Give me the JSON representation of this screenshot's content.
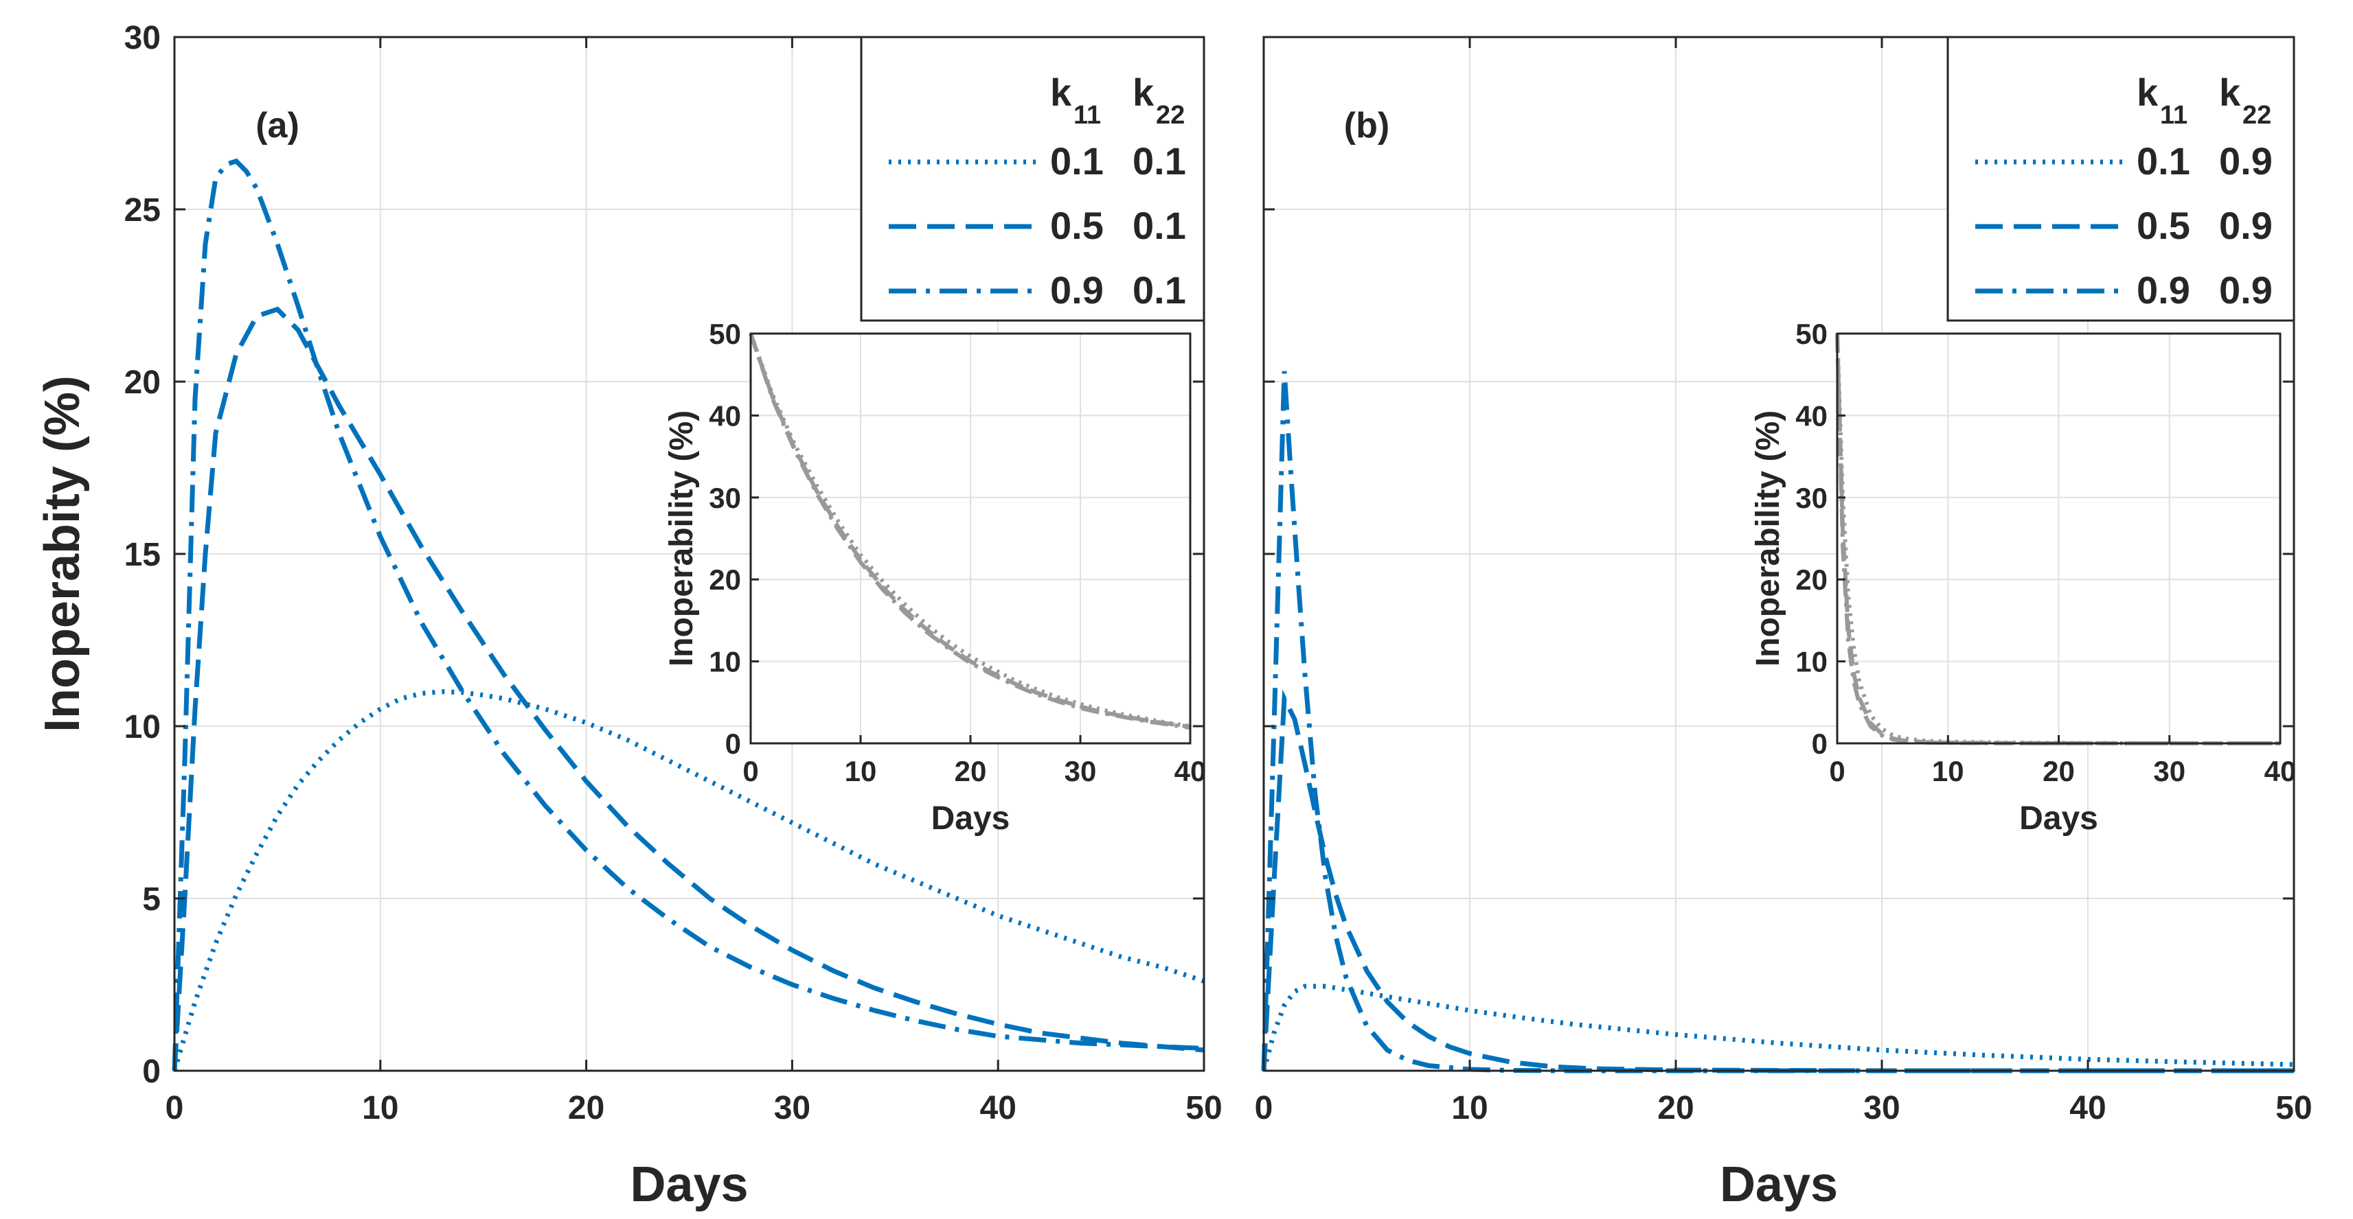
{
  "chart_data": [
    {
      "type": "line",
      "panel_label": "(a)",
      "xlabel": "Days",
      "ylabel": "Inoperabity (%)",
      "xlim": [
        0,
        50
      ],
      "ylim": [
        0,
        30
      ],
      "xticks": [
        "0",
        "10",
        "20",
        "30",
        "40",
        "50"
      ],
      "yticks": [
        "0",
        "5",
        "10",
        "15",
        "20",
        "25",
        "30"
      ],
      "grid": true,
      "legend": {
        "placement": "top-right",
        "header": {
          "k11": "k",
          "k11_sub": "11",
          "k22": "k",
          "k22_sub": "22"
        },
        "rows": [
          {
            "style": "dotted",
            "k11": "0.1",
            "k22": "0.1"
          },
          {
            "style": "dashed",
            "k11": "0.5",
            "k22": "0.1"
          },
          {
            "style": "dashdot",
            "k11": "0.9",
            "k22": "0.1"
          }
        ]
      },
      "color": "#0072BD",
      "series": [
        {
          "style": "dotted",
          "x": [
            0,
            1,
            2,
            3,
            4,
            5,
            6,
            7,
            8,
            9,
            10,
            11,
            12,
            13,
            14,
            15,
            16,
            18,
            20,
            22,
            24,
            26,
            28,
            30,
            32,
            34,
            36,
            38,
            40,
            42,
            44,
            46,
            48,
            50
          ],
          "values": [
            0,
            2.0,
            3.7,
            5.1,
            6.3,
            7.4,
            8.3,
            9.0,
            9.6,
            10.1,
            10.5,
            10.8,
            10.95,
            11.0,
            10.98,
            10.9,
            10.8,
            10.5,
            10.1,
            9.6,
            9.0,
            8.4,
            7.8,
            7.2,
            6.6,
            6.0,
            5.5,
            5.0,
            4.5,
            4.1,
            3.7,
            3.3,
            3.0,
            2.6
          ]
        },
        {
          "style": "dashed",
          "x": [
            0,
            0.5,
            1,
            1.5,
            2,
            3,
            4,
            5,
            6,
            7,
            8,
            10,
            12,
            14,
            16,
            18,
            20,
            22,
            24,
            26,
            28,
            30,
            32,
            34,
            36,
            38,
            40,
            42,
            44,
            46,
            48,
            50
          ],
          "values": [
            0,
            5.0,
            10.5,
            15.0,
            18.5,
            20.8,
            21.9,
            22.1,
            21.5,
            20.4,
            19.3,
            17.3,
            15.2,
            13.3,
            11.5,
            9.9,
            8.4,
            7.1,
            6.0,
            5.0,
            4.2,
            3.5,
            2.9,
            2.4,
            2.0,
            1.65,
            1.35,
            1.1,
            0.95,
            0.8,
            0.7,
            0.6
          ]
        },
        {
          "style": "dashdot",
          "x": [
            0,
            0.5,
            1,
            1.5,
            2,
            2.5,
            3,
            3.5,
            4,
            5,
            6,
            7,
            8,
            10,
            12,
            14,
            16,
            18,
            20,
            22,
            24,
            26,
            28,
            30,
            32,
            34,
            36,
            38,
            40,
            42,
            44,
            46,
            48,
            50
          ],
          "values": [
            0,
            9.0,
            19.5,
            24.0,
            25.9,
            26.3,
            26.4,
            26.1,
            25.6,
            24.0,
            22.2,
            20.3,
            18.5,
            15.5,
            13.0,
            11.0,
            9.2,
            7.7,
            6.4,
            5.3,
            4.4,
            3.6,
            3.0,
            2.5,
            2.1,
            1.75,
            1.45,
            1.2,
            1.0,
            0.9,
            0.8,
            0.75,
            0.7,
            0.65
          ]
        }
      ],
      "inset": {
        "xlabel": "Days",
        "ylabel": "Inoperability (%)",
        "xlim": [
          0,
          40
        ],
        "ylim": [
          0,
          50
        ],
        "xticks": [
          "0",
          "10",
          "20",
          "30",
          "40"
        ],
        "yticks": [
          "0",
          "10",
          "20",
          "30",
          "40",
          "50"
        ],
        "color": "#999999",
        "series": [
          {
            "style": "dotted",
            "x": [
              0,
              2,
              4,
              6,
              8,
              10,
              12,
              14,
              16,
              18,
              20,
              22,
              24,
              26,
              28,
              30,
              32,
              34,
              36,
              38,
              40
            ],
            "values": [
              50,
              42.5,
              36.5,
              31.5,
              27.0,
              23.0,
              19.8,
              17.0,
              14.5,
              12.4,
              10.6,
              9.1,
              7.7,
              6.6,
              5.6,
              4.8,
              4.1,
              3.5,
              3.0,
              2.5,
              2.1
            ]
          },
          {
            "style": "dashed",
            "x": [
              0,
              2,
              4,
              6,
              8,
              10,
              12,
              14,
              16,
              18,
              20,
              22,
              24,
              26,
              28,
              30,
              32,
              34,
              36,
              38,
              40
            ],
            "values": [
              50,
              42.2,
              36.0,
              30.8,
              26.3,
              22.4,
              19.1,
              16.3,
              13.9,
              11.8,
              10.0,
              8.6,
              7.3,
              6.2,
              5.3,
              4.5,
              3.8,
              3.3,
              2.8,
              2.4,
              2.0
            ]
          },
          {
            "style": "dashdot",
            "x": [
              0,
              2,
              4,
              6,
              8,
              10,
              12,
              14,
              16,
              18,
              20,
              22,
              24,
              26,
              28,
              30,
              32,
              34,
              36,
              38,
              40
            ],
            "values": [
              50,
              42.0,
              35.8,
              30.5,
              26.0,
              22.1,
              18.8,
              16.0,
              13.6,
              11.6,
              9.8,
              8.4,
              7.1,
              6.0,
              5.1,
              4.3,
              3.7,
              3.2,
              2.7,
              2.3,
              1.9
            ]
          }
        ]
      }
    },
    {
      "type": "line",
      "panel_label": "(b)",
      "xlabel": "Days",
      "ylabel": "",
      "xlim": [
        0,
        50
      ],
      "ylim": [
        0,
        30
      ],
      "xticks": [
        "0",
        "10",
        "20",
        "30",
        "40",
        "50"
      ],
      "yticks": [],
      "grid": true,
      "legend": {
        "placement": "top-right",
        "header": {
          "k11": "k",
          "k11_sub": "11",
          "k22": "k",
          "k22_sub": "22"
        },
        "rows": [
          {
            "style": "dotted",
            "k11": "0.1",
            "k22": "0.9"
          },
          {
            "style": "dashed",
            "k11": "0.5",
            "k22": "0.9"
          },
          {
            "style": "dashdot",
            "k11": "0.9",
            "k22": "0.9"
          }
        ]
      },
      "color": "#0072BD",
      "series": [
        {
          "style": "dotted",
          "x": [
            0,
            0.5,
            1,
            1.5,
            2,
            3,
            4,
            5,
            6,
            8,
            10,
            12,
            15,
            20,
            25,
            30,
            35,
            40,
            45,
            50
          ],
          "values": [
            0,
            1.1,
            1.9,
            2.3,
            2.45,
            2.45,
            2.35,
            2.25,
            2.15,
            1.95,
            1.75,
            1.58,
            1.35,
            1.05,
            0.8,
            0.6,
            0.45,
            0.33,
            0.25,
            0.18
          ]
        },
        {
          "style": "dashed",
          "x": [
            0,
            0.5,
            1,
            1.5,
            2,
            2.5,
            3,
            3.5,
            4,
            5,
            6,
            7,
            8,
            9,
            10,
            12,
            14,
            16,
            20,
            25,
            30,
            40,
            50
          ],
          "values": [
            0,
            5.5,
            10.8,
            10.2,
            8.9,
            7.5,
            6.2,
            5.1,
            4.2,
            2.9,
            2.0,
            1.4,
            1.0,
            0.7,
            0.5,
            0.25,
            0.12,
            0.06,
            0.02,
            0.01,
            0,
            0,
            0
          ]
        },
        {
          "style": "dashdot",
          "x": [
            0,
            0.5,
            1,
            1.3,
            1.7,
            2,
            2.5,
            3,
            3.5,
            4,
            5,
            6,
            7,
            8,
            10,
            12,
            15,
            20,
            30,
            40,
            50
          ],
          "values": [
            0,
            10.0,
            20.3,
            17.5,
            14.0,
            11.5,
            8.0,
            5.6,
            3.9,
            2.7,
            1.3,
            0.6,
            0.3,
            0.15,
            0.04,
            0.01,
            0,
            0,
            0,
            0,
            0
          ]
        }
      ],
      "inset": {
        "xlabel": "Days",
        "ylabel": "Inoperability (%)",
        "xlim": [
          0,
          40
        ],
        "ylim": [
          0,
          50
        ],
        "xticks": [
          "0",
          "10",
          "20",
          "30",
          "40"
        ],
        "yticks": [
          "0",
          "10",
          "20",
          "30",
          "40",
          "50"
        ],
        "color": "#999999",
        "series": [
          {
            "style": "dotted",
            "x": [
              0,
              0.5,
              1,
              1.5,
              2,
              3,
              4,
              5,
              6,
              8,
              10,
              15,
              20,
              30,
              40
            ],
            "values": [
              50,
              30,
              18,
              11.5,
              7.5,
              3.5,
              1.8,
              1.0,
              0.6,
              0.3,
              0.2,
              0.1,
              0.05,
              0,
              0
            ]
          },
          {
            "style": "dashed",
            "x": [
              0,
              0.5,
              1,
              1.5,
              2,
              3,
              4,
              5,
              6,
              8,
              10,
              15,
              20,
              30,
              40
            ],
            "values": [
              50,
              26,
              14,
              8.5,
              5.5,
              2.5,
              1.2,
              0.6,
              0.35,
              0.15,
              0.08,
              0.03,
              0.01,
              0,
              0
            ]
          },
          {
            "style": "dashdot",
            "x": [
              0,
              0.5,
              1,
              1.5,
              2,
              3,
              4,
              5,
              6,
              8,
              10,
              15,
              20,
              30,
              40
            ],
            "values": [
              50,
              24,
              12.5,
              7.5,
              4.8,
              2.1,
              1.0,
              0.5,
              0.25,
              0.1,
              0.05,
              0.02,
              0,
              0,
              0
            ]
          }
        ]
      }
    }
  ]
}
